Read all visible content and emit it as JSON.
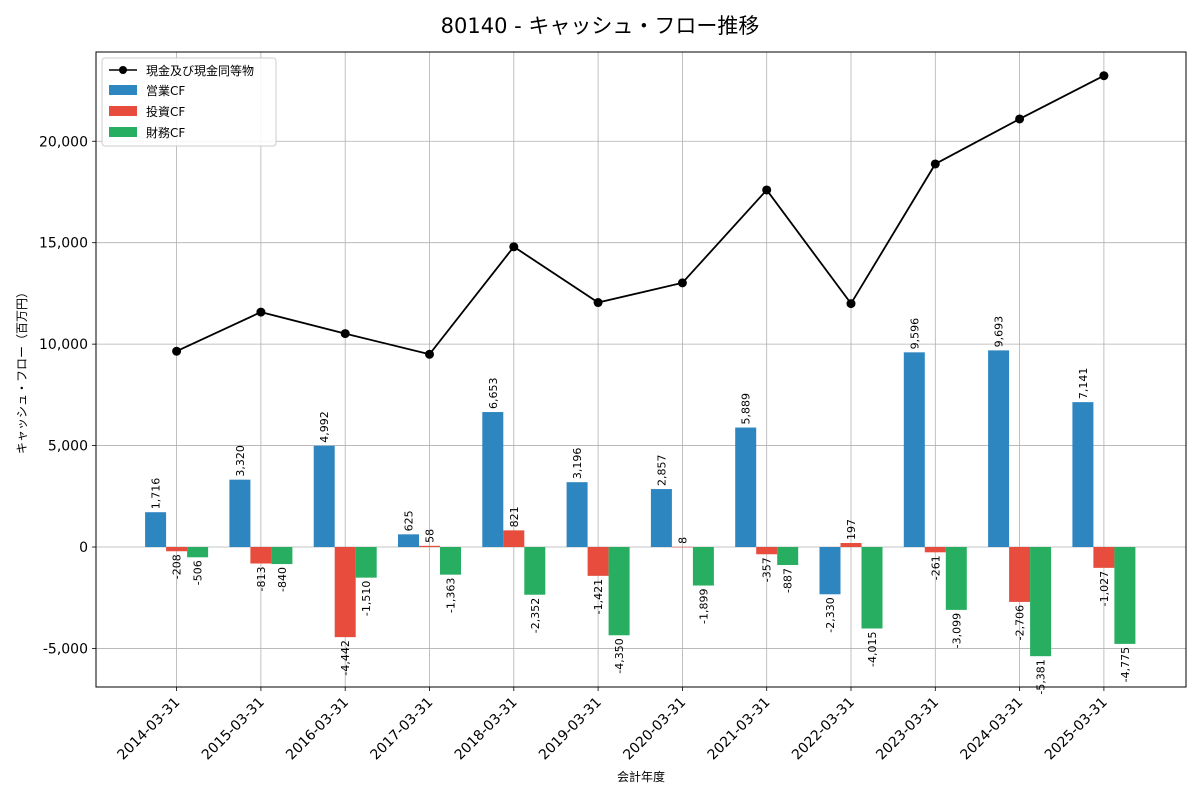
{
  "chart_data": {
    "type": "bar+line",
    "title": "80140 - キャッシュ・フロー推移",
    "xlabel": "会計年度",
    "ylabel": "キャッシュ・フロー（百万円）",
    "ylim": [
      -6900,
      24400
    ],
    "yticks": [
      -5000,
      0,
      5000,
      10000,
      15000,
      20000
    ],
    "ytick_labels": [
      "-5,000",
      "0",
      "5,000",
      "10,000",
      "15,000",
      "20,000"
    ],
    "grid": true,
    "legend_position": "top-left",
    "categories": [
      "2014-03-31",
      "2015-03-31",
      "2016-03-31",
      "2017-03-31",
      "2018-03-31",
      "2019-03-31",
      "2020-03-31",
      "2021-03-31",
      "2022-03-31",
      "2023-03-31",
      "2024-03-31",
      "2025-03-31"
    ],
    "bar_series": [
      {
        "name": "営業CF",
        "color": "#2e86c1",
        "values": [
          1716,
          3320,
          4992,
          625,
          6653,
          3196,
          2857,
          5889,
          -2330,
          9596,
          9693,
          7141
        ],
        "labels": [
          "1,716",
          "3,320",
          "4,992",
          "625",
          "6,653",
          "3,196",
          "2,857",
          "5,889",
          "-2,330",
          "9,596",
          "9,693",
          "7,141"
        ]
      },
      {
        "name": "投資CF",
        "color": "#e74c3c",
        "values": [
          -208,
          -813,
          -4442,
          58,
          821,
          -1421,
          8,
          -357,
          197,
          -261,
          -2706,
          -1027
        ],
        "labels": [
          "-208",
          "-813",
          "-4,442",
          "58",
          "821",
          "-1,421",
          "8",
          "-357",
          "197",
          "-261",
          "-2,706",
          "-1,027"
        ]
      },
      {
        "name": "財務CF",
        "color": "#27ae60",
        "values": [
          -506,
          -840,
          -1510,
          -1363,
          -2352,
          -4350,
          -1899,
          -887,
          -4015,
          -3099,
          -5381,
          -4775
        ],
        "labels": [
          "-506",
          "-840",
          "-1,510",
          "-1,363",
          "-2,352",
          "-4,350",
          "-1,899",
          "-887",
          "-4,015",
          "-3,099",
          "-5,381",
          "-4,775"
        ]
      }
    ],
    "line_series": {
      "name": "現金及び現金同等物",
      "color": "#000000",
      "values": [
        9650,
        11580,
        10520,
        9500,
        14800,
        12050,
        13020,
        17600,
        12000,
        18880,
        21100,
        23230
      ]
    }
  }
}
